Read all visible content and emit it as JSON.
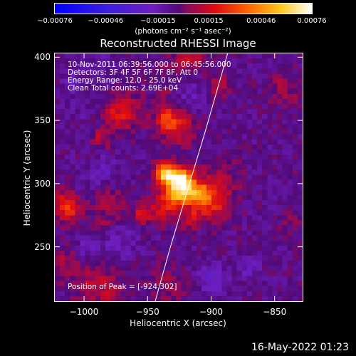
{
  "chart_data": {
    "type": "heatmap",
    "title": "Reconstructed RHESSI Image",
    "xlabel": "Heliocentric X (arcsec)",
    "ylabel": "Heliocentric Y (arcsec)",
    "xlim": [
      -1023,
      -828
    ],
    "ylim": [
      207,
      403
    ],
    "x_ticks": [
      -1000,
      -950,
      -900,
      -850
    ],
    "y_ticks": [
      250,
      300,
      350,
      400
    ],
    "x_tick_labels": [
      "−1000",
      "−950",
      "−900",
      "−850"
    ],
    "y_tick_labels": [
      "250",
      "300",
      "350",
      "400"
    ],
    "colorbar": {
      "ticks": [
        -0.00076,
        -0.00046,
        -0.00015,
        0.00015,
        0.00046,
        0.00076
      ],
      "tick_labels": [
        "−0.00076",
        "−0.00046",
        "−0.00015",
        "0.00015",
        "0.00046",
        "0.00076"
      ],
      "unit_label": "(photons cm⁻² s⁻¹ asec⁻²)",
      "range": [
        -0.00076,
        0.00076
      ]
    },
    "info_lines": [
      "10-Nov-2011 06:39:56.000 to 06:45:56.000",
      "Detectors: 3F 4F 5F 6F 7F 8F, Att 0",
      "Energy Range: 12.0 - 25.0 keV",
      "Clean    Total counts: 2.69E+04"
    ],
    "peak_label": "Position of Peak = [-924,302]",
    "peak_position": [
      -924,
      302
    ],
    "limb_curve": [
      [
        -944,
        207
      ],
      [
        -932,
        250
      ],
      [
        -920,
        290
      ],
      [
        -905,
        340
      ],
      [
        -887,
        403
      ]
    ],
    "grid": false
  },
  "footer": {
    "timestamp": "16-May-2022 01:23"
  },
  "colors": {
    "background": "#000000",
    "foreground": "#ffffff"
  }
}
